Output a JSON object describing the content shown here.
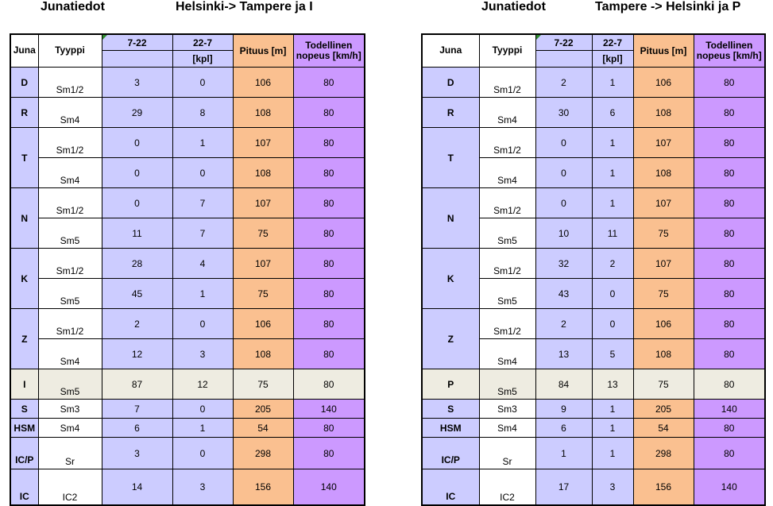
{
  "left": {
    "title": "Junatiedot",
    "route": "Helsinki-> Tampere ja I",
    "headers": {
      "juna": "Juna",
      "tyyppi": "Tyyppi",
      "day": "7-22",
      "night": "22-7",
      "unit": "[kpl]",
      "length": "Pituus [m]",
      "speed": "Todellinen nopeus [km/h]"
    },
    "rows": {
      "d": {
        "juna": "D",
        "type": "Sm1/2",
        "day": "3",
        "night": "0",
        "len": "106",
        "spd": "80"
      },
      "r": {
        "juna": "R",
        "type": "Sm4",
        "day": "29",
        "night": "8",
        "len": "108",
        "spd": "80"
      },
      "t1": {
        "juna": "T",
        "type": "Sm1/2",
        "day": "0",
        "night": "1",
        "len": "107",
        "spd": "80"
      },
      "t2": {
        "type": "Sm4",
        "day": "0",
        "night": "0",
        "len": "108",
        "spd": "80"
      },
      "n1": {
        "juna": "N",
        "type": "Sm1/2",
        "day": "0",
        "night": "7",
        "len": "107",
        "spd": "80"
      },
      "n2": {
        "type": "Sm5",
        "day": "11",
        "night": "7",
        "len": "75",
        "spd": "80"
      },
      "k1": {
        "juna": "K",
        "type": "Sm1/2",
        "day": "28",
        "night": "4",
        "len": "107",
        "spd": "80"
      },
      "k2": {
        "type": "Sm5",
        "day": "45",
        "night": "1",
        "len": "75",
        "spd": "80"
      },
      "z1": {
        "juna": "Z",
        "type": "Sm1/2",
        "day": "2",
        "night": "0",
        "len": "106",
        "spd": "80"
      },
      "z2": {
        "type": "Sm4",
        "day": "12",
        "night": "3",
        "len": "108",
        "spd": "80"
      },
      "x": {
        "juna": "I",
        "type": "Sm5",
        "day": "87",
        "night": "12",
        "len": "75",
        "spd": "80"
      },
      "s": {
        "juna": "S",
        "type": "Sm3",
        "day": "7",
        "night": "0",
        "len": "205",
        "spd": "140"
      },
      "hsm": {
        "juna": "HSM",
        "type": "Sm4",
        "day": "6",
        "night": "1",
        "len": "54",
        "spd": "80"
      },
      "icp": {
        "juna": "IC/P",
        "type": "Sr",
        "day": "3",
        "night": "0",
        "len": "298",
        "spd": "80"
      },
      "ic": {
        "juna": "IC",
        "type": "IC2",
        "day": "14",
        "night": "3",
        "len": "156",
        "spd": "140"
      }
    }
  },
  "right": {
    "title": "Junatiedot",
    "route": "Tampere -> Helsinki ja P",
    "headers": {
      "juna": "Juna",
      "tyyppi": "Tyyppi",
      "day": "7-22",
      "night": "22-7",
      "unit": "[kpl]",
      "length": "Pituus [m]",
      "speed": "Todellinen nopeus [km/h]"
    },
    "rows": {
      "d": {
        "juna": "D",
        "type": "Sm1/2",
        "day": "2",
        "night": "1",
        "len": "106",
        "spd": "80"
      },
      "r": {
        "juna": "R",
        "type": "Sm4",
        "day": "30",
        "night": "6",
        "len": "108",
        "spd": "80"
      },
      "t1": {
        "juna": "T",
        "type": "Sm1/2",
        "day": "0",
        "night": "1",
        "len": "107",
        "spd": "80"
      },
      "t2": {
        "type": "Sm4",
        "day": "0",
        "night": "1",
        "len": "108",
        "spd": "80"
      },
      "n1": {
        "juna": "N",
        "type": "Sm1/2",
        "day": "0",
        "night": "1",
        "len": "107",
        "spd": "80"
      },
      "n2": {
        "type": "Sm5",
        "day": "10",
        "night": "11",
        "len": "75",
        "spd": "80"
      },
      "k1": {
        "juna": "K",
        "type": "Sm1/2",
        "day": "32",
        "night": "2",
        "len": "107",
        "spd": "80"
      },
      "k2": {
        "type": "Sm5",
        "day": "43",
        "night": "0",
        "len": "75",
        "spd": "80"
      },
      "z1": {
        "juna": "Z",
        "type": "Sm1/2",
        "day": "2",
        "night": "0",
        "len": "106",
        "spd": "80"
      },
      "z2": {
        "type": "Sm4",
        "day": "13",
        "night": "5",
        "len": "108",
        "spd": "80"
      },
      "x": {
        "juna": "P",
        "type": "Sm5",
        "day": "84",
        "night": "13",
        "len": "75",
        "spd": "80"
      },
      "s": {
        "juna": "S",
        "type": "Sm3",
        "day": "9",
        "night": "1",
        "len": "205",
        "spd": "140"
      },
      "hsm": {
        "juna": "HSM",
        "type": "Sm4",
        "day": "6",
        "night": "1",
        "len": "54",
        "spd": "80"
      },
      "icp": {
        "juna": "IC/P",
        "type": "Sr",
        "day": "1",
        "night": "1",
        "len": "298",
        "spd": "80"
      },
      "ic": {
        "juna": "IC",
        "type": "IC2",
        "day": "17",
        "night": "3",
        "len": "156",
        "spd": "140"
      }
    }
  }
}
